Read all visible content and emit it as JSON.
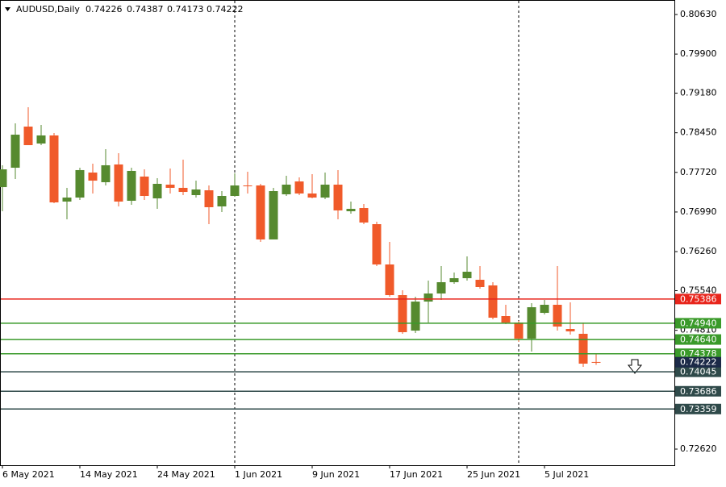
{
  "chart_data": {
    "type": "candlestick",
    "title": "AUDUSD,Daily",
    "categories": [
      "6 May 2021",
      null,
      null,
      null,
      null,
      null,
      "14 May 2021",
      null,
      null,
      null,
      null,
      null,
      "24 May 2021",
      null,
      null,
      null,
      null,
      null,
      "1 Jun 2021",
      null,
      null,
      null,
      null,
      null,
      "9 Jun 2021",
      null,
      null,
      null,
      null,
      null,
      "17 Jun 2021",
      null,
      null,
      null,
      null,
      null,
      "25 Jun 2021",
      null,
      null,
      null,
      null,
      null,
      "5 Jul 2021",
      null,
      null,
      null,
      null
    ],
    "open": [
      0.77449,
      0.77806,
      0.78564,
      0.78252,
      0.78401,
      0.77182,
      0.77256,
      0.77717,
      0.77539,
      0.77866,
      0.77197,
      0.77643,
      0.77241,
      0.77494,
      0.77435,
      0.77301,
      0.7739,
      0.77093,
      0.77286,
      0.77479,
      0.77479,
      0.76484,
      0.77316,
      0.77553,
      0.77331,
      0.77256,
      0.77494,
      0.77004,
      0.77063,
      0.76766,
      0.76023,
      0.75458,
      0.74804,
      0.75339,
      0.75488,
      0.75696,
      0.7577,
      0.75741,
      0.75637,
      0.75072,
      0.74953,
      0.74656,
      0.75131,
      0.7528,
      0.74834,
      0.74745,
      0.74226
    ],
    "high": [
      0.77851,
      0.78623,
      0.78921,
      0.78594,
      0.78445,
      0.77435,
      0.77806,
      0.7788,
      0.78148,
      0.78074,
      0.77806,
      0.77776,
      0.77613,
      0.77791,
      0.77955,
      0.77568,
      0.77479,
      0.77375,
      0.77702,
      0.77732,
      0.77509,
      0.77435,
      0.77658,
      0.77628,
      0.77687,
      0.77717,
      0.77762,
      0.77182,
      0.77137,
      0.7681,
      0.76439,
      0.75547,
      0.75429,
      0.75726,
      0.75993,
      0.75874,
      0.76172,
      0.75993,
      0.75696,
      0.7528,
      0.74983,
      0.7531,
      0.75369,
      0.75993,
      0.75324,
      0.74953,
      0.74387
    ],
    "low": [
      0.77004,
      0.77598,
      0.78222,
      0.78222,
      0.77152,
      0.76855,
      0.77212,
      0.77331,
      0.77479,
      0.77093,
      0.77123,
      0.77212,
      0.77048,
      0.77331,
      0.77301,
      0.77256,
      0.76766,
      0.76989,
      0.77271,
      0.77331,
      0.76439,
      0.76484,
      0.77286,
      0.77301,
      0.77241,
      0.77227,
      0.76855,
      0.76959,
      0.76766,
      0.75993,
      0.75429,
      0.74745,
      0.7476,
      0.74953,
      0.75369,
      0.75666,
      0.75726,
      0.75577,
      0.75012,
      0.74923,
      0.74596,
      0.74418,
      0.75102,
      0.74804,
      0.7473,
      0.74136,
      0.74173
    ],
    "close": [
      0.77776,
      0.78415,
      0.78222,
      0.78401,
      0.77167,
      0.77256,
      0.77762,
      0.77568,
      0.77851,
      0.77182,
      0.77747,
      0.77286,
      0.77509,
      0.77435,
      0.7736,
      0.77405,
      0.77078,
      0.77286,
      0.77479,
      0.77464,
      0.76484,
      0.77375,
      0.77494,
      0.77331,
      0.77256,
      0.77494,
      0.77019,
      0.77048,
      0.76796,
      0.76023,
      0.75458,
      0.74775,
      0.75339,
      0.75488,
      0.75696,
      0.7577,
      0.75889,
      0.75607,
      0.75042,
      0.74953,
      0.74656,
      0.75235,
      0.7528,
      0.74879,
      0.7479,
      0.74195,
      0.74222
    ],
    "up_color": "#568a2f",
    "down_color": "#f05a2a",
    "last_price_color": "#1c2a48",
    "ylim": [
      0.72323,
      0.80897
    ],
    "yticks": [
      {
        "value": 0.8063,
        "label": "0.80630"
      },
      {
        "value": 0.799,
        "label": "0.79900"
      },
      {
        "value": 0.7918,
        "label": "0.79180"
      },
      {
        "value": 0.7845,
        "label": "0.78450"
      },
      {
        "value": 0.7772,
        "label": "0.77720"
      },
      {
        "value": 0.7699,
        "label": "0.76990"
      },
      {
        "value": 0.7626,
        "label": "0.76260"
      },
      {
        "value": 0.7554,
        "label": "0.75540"
      },
      {
        "value": 0.7481,
        "label": "0.74810"
      },
      {
        "value": 0.7262,
        "label": "0.72620"
      }
    ],
    "levels": [
      {
        "value": 0.75386,
        "color": "#e8251c"
      },
      {
        "value": 0.7494,
        "label": "0.74940",
        "color": "#3a9a2a"
      },
      {
        "value": 0.7464,
        "label": "0.74640",
        "color": "#3a9a2a"
      },
      {
        "value": 0.74378,
        "color": "#3a9a2a"
      },
      {
        "value": 0.74045,
        "color": "#2f4a4a"
      },
      {
        "value": 0.73686,
        "color": "#2f4a4a"
      },
      {
        "value": 0.73359,
        "color": "#2f4a4a"
      }
    ]
  }
}
